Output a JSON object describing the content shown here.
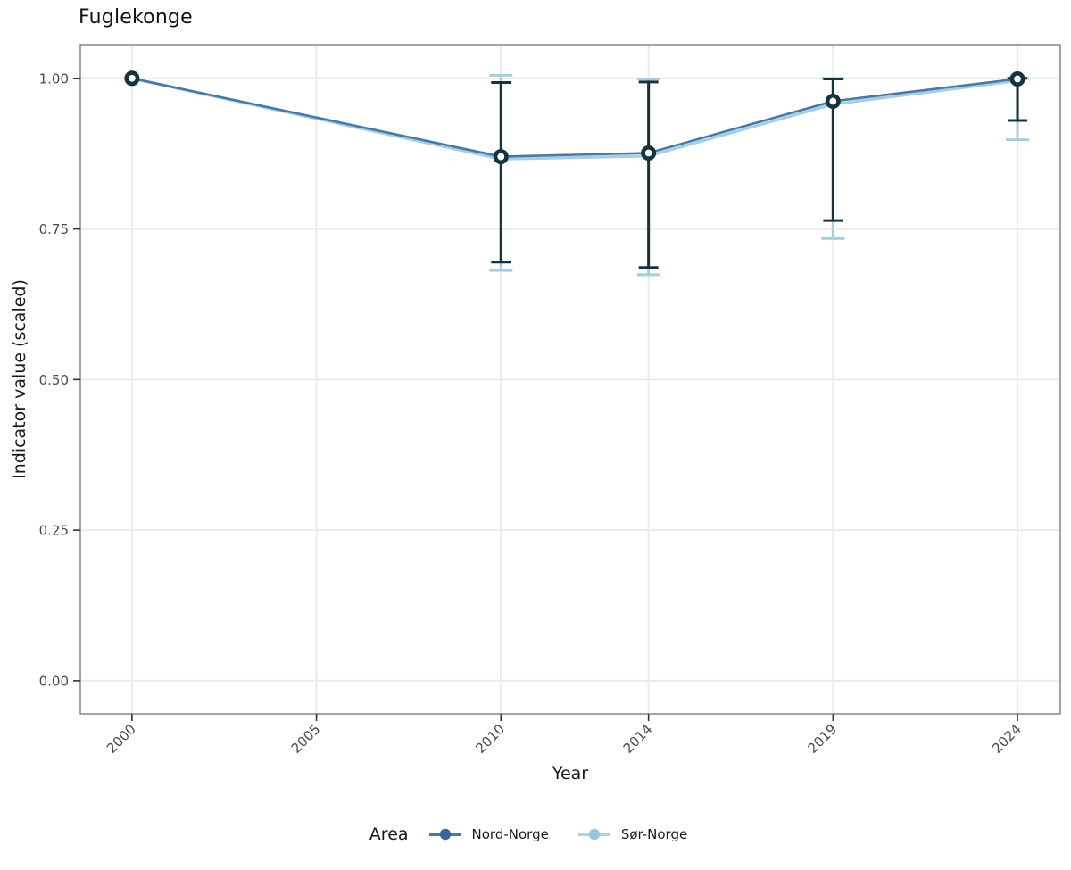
{
  "title": "Fuglekonge",
  "axes": {
    "x_label": "Year",
    "y_label": "Indicator value (scaled)"
  },
  "legend": {
    "title": "Area",
    "items": [
      {
        "label": "Nord-Norge",
        "line_color": "#4878a8",
        "dot_color": "#33669a"
      },
      {
        "label": "Sør-Norge",
        "line_color": "#abd2ea",
        "dot_color": "#97c6e3"
      }
    ]
  },
  "colors": {
    "errorbar_dark": "#16333b",
    "errorbar_light": "#a6cee3",
    "gridline": "#ebebeb",
    "panel_border": "#858585",
    "tick_mark": "#333333",
    "tick_text": "#4a4a4a",
    "background": "#ffffff"
  },
  "chart_data": {
    "type": "line",
    "title": "Fuglekonge",
    "xlabel": "Year",
    "ylabel": "Indicator value (scaled)",
    "xlim": [
      1998.6,
      2025.16
    ],
    "ylim": [
      -0.055,
      1.056
    ],
    "grid": true,
    "legend_position": "bottom",
    "legend_title": "Area",
    "x_ticks": [
      {
        "value": 2000,
        "label": "2000"
      },
      {
        "value": 2005,
        "label": "2005"
      },
      {
        "value": 2010,
        "label": "2010"
      },
      {
        "value": 2014,
        "label": "2014"
      },
      {
        "value": 2019,
        "label": "2019"
      },
      {
        "value": 2024,
        "label": "2024"
      }
    ],
    "y_ticks": [
      {
        "value": 0.0,
        "label": "0.00"
      },
      {
        "value": 0.25,
        "label": "0.25"
      },
      {
        "value": 0.5,
        "label": "0.50"
      },
      {
        "value": 0.75,
        "label": "0.75"
      },
      {
        "value": 1.0,
        "label": "1.00"
      }
    ],
    "series": [
      {
        "name": "Nord-Norge",
        "line_color": "#4678a8",
        "point_style": "open-circle",
        "point_ring_color": "#16333b",
        "point_fill": "#ffffff",
        "error_color": "#16333b",
        "x": [
          2000,
          2010,
          2014,
          2019,
          2024
        ],
        "y": [
          1.0,
          0.87,
          0.876,
          0.962,
          0.999
        ],
        "ci_lower": [
          null,
          0.695,
          0.686,
          0.764,
          0.93
        ],
        "ci_upper": [
          null,
          0.993,
          0.994,
          0.999,
          1.0
        ]
      },
      {
        "name": "Sør-Norge",
        "line_color": "#a6cee3",
        "point_style": "filled-dot",
        "point_fill": "#9ec9e4",
        "error_color": "#a6cee3",
        "x": [
          2000,
          2010,
          2014,
          2019,
          2024
        ],
        "y": [
          1.0,
          0.866,
          0.871,
          0.957,
          0.996
        ],
        "ci_lower": [
          null,
          0.681,
          0.674,
          0.734,
          0.898
        ],
        "ci_upper": [
          null,
          1.005,
          0.999,
          1.0,
          1.0
        ]
      }
    ]
  }
}
